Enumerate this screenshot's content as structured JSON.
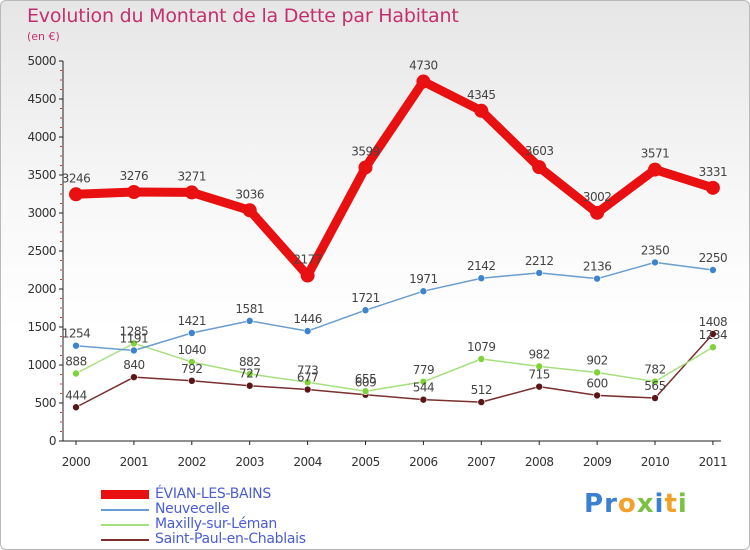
{
  "title": "Evolution du Montant de la Dette par Habitant",
  "subtitle": "(en €)",
  "brand": {
    "letters": [
      "P",
      "r",
      "o",
      "x",
      "i",
      "t",
      "i"
    ],
    "colors": [
      "#3a7fd0",
      "#3a7fd0",
      "#f2a229",
      "#7cc242",
      "#3a7fd0",
      "#f2a229",
      "#7cc242"
    ]
  },
  "chart_data": {
    "type": "line",
    "title": "Evolution du Montant de la Dette par Habitant",
    "ylabel": "(en €)",
    "categories": [
      "2000",
      "2001",
      "2002",
      "2003",
      "2004",
      "2005",
      "2006",
      "2007",
      "2008",
      "2009",
      "2010",
      "2011"
    ],
    "ylim": [
      0,
      5000
    ],
    "yticks": [
      0,
      500,
      1000,
      1500,
      2000,
      2500,
      3000,
      3500,
      4000,
      4500,
      5000
    ],
    "series": [
      {
        "name": "ÉVIAN-LES-BAINS",
        "color": "#e81010",
        "values": [
          3246,
          3276,
          3271,
          3036,
          2177,
          3599,
          4730,
          4345,
          3603,
          3002,
          3571,
          3331
        ]
      },
      {
        "name": "Neuvecelle",
        "color": "#6a9dd0",
        "marker": "#3d84cc",
        "values": [
          1254,
          1191,
          1421,
          1581,
          1446,
          1721,
          1971,
          2142,
          2212,
          2136,
          2350,
          2250
        ]
      },
      {
        "name": "Maxilly-sur-Léman",
        "color": "#a6e07e",
        "marker": "#7fd23a",
        "values": [
          888,
          1285,
          1040,
          882,
          773,
          655,
          779,
          1079,
          982,
          902,
          782,
          1234
        ]
      },
      {
        "name": "Saint-Paul-en-Chablais",
        "color": "#7a2e2e",
        "marker": "#5a1616",
        "values": [
          444,
          840,
          792,
          727,
          677,
          609,
          544,
          512,
          715,
          600,
          565,
          1408
        ]
      }
    ],
    "legend_position": "bottom-left",
    "grid": false
  }
}
